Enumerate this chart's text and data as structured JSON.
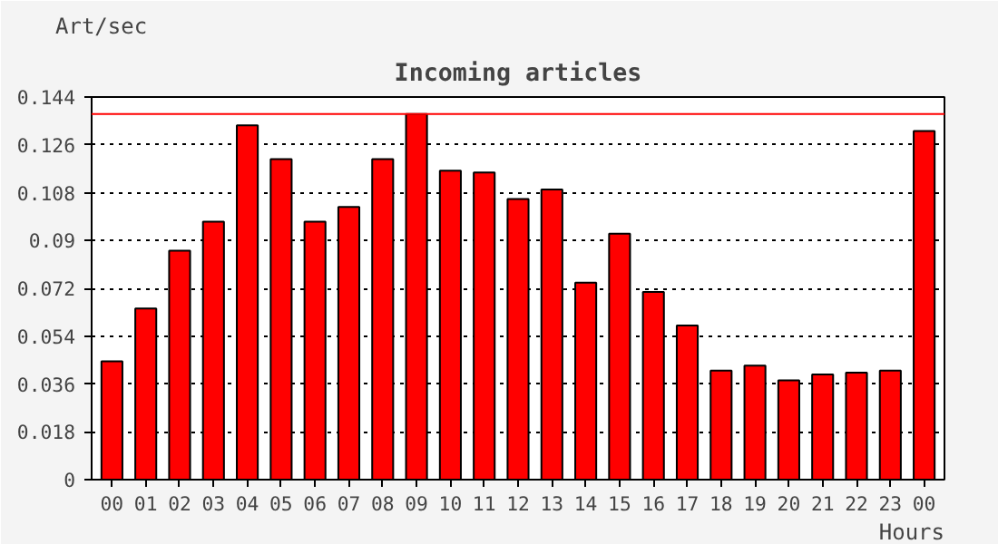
{
  "chart_data": {
    "type": "bar",
    "title": "Incoming articles",
    "ylabel": "Art/sec",
    "xlabel": "Hours",
    "categories": [
      "00",
      "01",
      "02",
      "03",
      "04",
      "05",
      "06",
      "07",
      "08",
      "09",
      "10",
      "11",
      "12",
      "13",
      "14",
      "15",
      "16",
      "17",
      "18",
      "19",
      "20",
      "21",
      "22",
      "23",
      "00"
    ],
    "values": [
      0.0445,
      0.0644,
      0.0862,
      0.0971,
      0.1333,
      0.1206,
      0.0971,
      0.1026,
      0.1206,
      0.1376,
      0.1163,
      0.1156,
      0.1056,
      0.1092,
      0.0741,
      0.0926,
      0.0706,
      0.058,
      0.041,
      0.0429,
      0.0374,
      0.0396,
      0.0403,
      0.041,
      0.1312
    ],
    "color": "#ff0000",
    "ylim": [
      0,
      0.144
    ],
    "yticks": [
      0,
      0.018,
      0.036,
      0.054,
      0.072,
      0.09,
      0.108,
      0.126,
      0.144
    ],
    "grid": "y",
    "line_style": "dotted",
    "ref_lines": [
      {
        "axis": "y",
        "value": 0.1376,
        "color": "#ff0000"
      }
    ]
  }
}
